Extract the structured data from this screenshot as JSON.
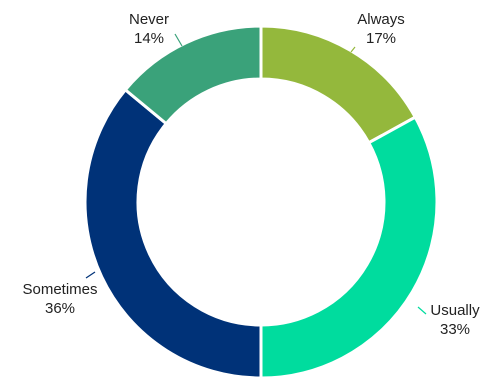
{
  "chart_data": {
    "type": "pie",
    "title": "",
    "slices": [
      {
        "label": "Always",
        "value": 17,
        "value_label": "17%",
        "color": "#94b83c"
      },
      {
        "label": "Usually",
        "value": 33,
        "value_label": "33%",
        "color": "#00dc9e"
      },
      {
        "label": "Sometimes",
        "value": 36,
        "value_label": "36%",
        "color": "#003278"
      },
      {
        "label": "Never",
        "value": 14,
        "value_label": "14%",
        "color": "#3aa27a"
      }
    ],
    "donut": true,
    "start_angle": "12 o'clock",
    "direction": "clockwise",
    "legend": "none"
  }
}
